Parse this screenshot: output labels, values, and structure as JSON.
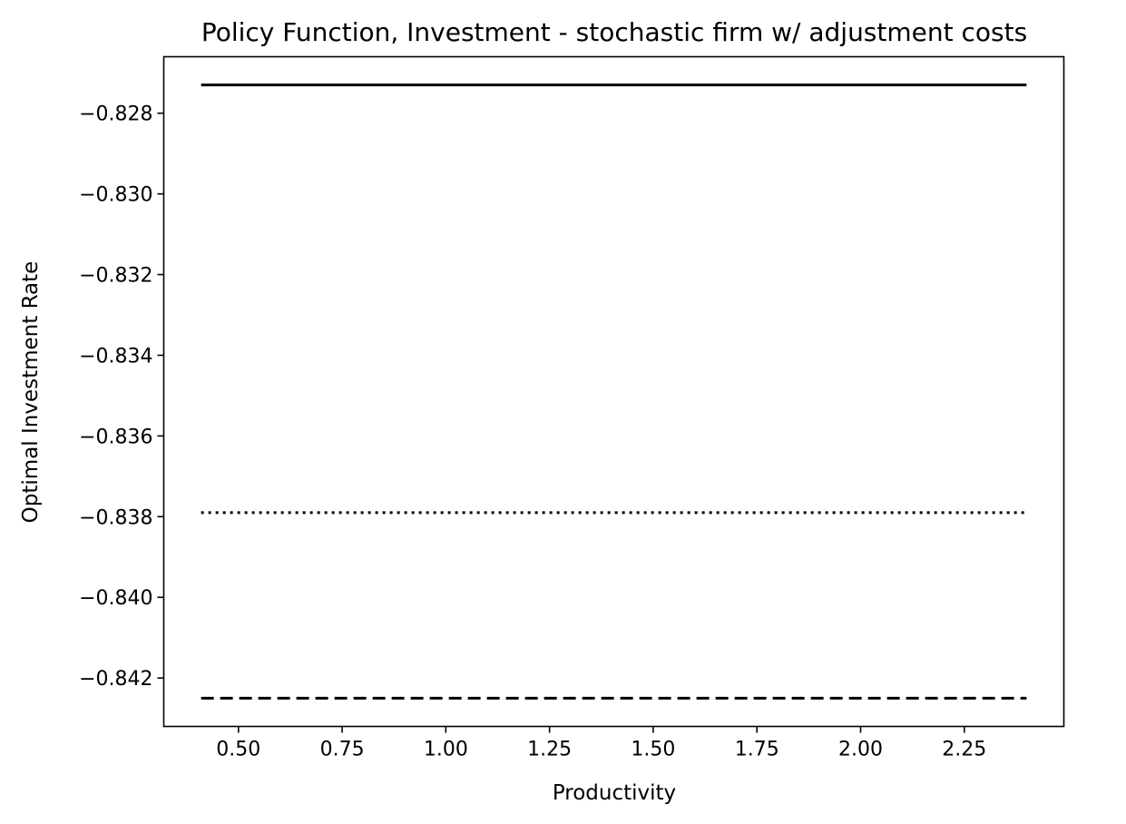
{
  "chart_data": {
    "type": "line",
    "title": "Policy Function, Investment - stochastic firm w/ adjustment costs",
    "xlabel": "Productivity",
    "ylabel": "Optimal Investment Rate",
    "xlim": [
      0.32,
      2.49
    ],
    "ylim": [
      -0.8432,
      -0.8266
    ],
    "xticks": [
      0.5,
      0.75,
      1.0,
      1.25,
      1.5,
      1.75,
      2.0,
      2.25
    ],
    "xtick_labels": [
      "0.50",
      "0.75",
      "1.00",
      "1.25",
      "1.50",
      "1.75",
      "2.00",
      "2.25"
    ],
    "yticks": [
      -0.828,
      -0.83,
      -0.832,
      -0.834,
      -0.836,
      -0.838,
      -0.84,
      -0.842
    ],
    "ytick_labels": [
      "−0.828",
      "−0.830",
      "−0.832",
      "−0.834",
      "−0.836",
      "−0.838",
      "−0.840",
      "−0.842"
    ],
    "grid": false,
    "series": [
      {
        "style": "solid",
        "color": "#000000",
        "x": [
          0.41,
          2.4
        ],
        "y": [
          -0.8273,
          -0.8273
        ]
      },
      {
        "style": "dotted",
        "color": "#000000",
        "x": [
          0.41,
          2.4
        ],
        "y": [
          -0.8379,
          -0.8379
        ]
      },
      {
        "style": "dashed",
        "color": "#000000",
        "x": [
          0.41,
          2.4
        ],
        "y": [
          -0.8425,
          -0.8425
        ]
      }
    ]
  }
}
